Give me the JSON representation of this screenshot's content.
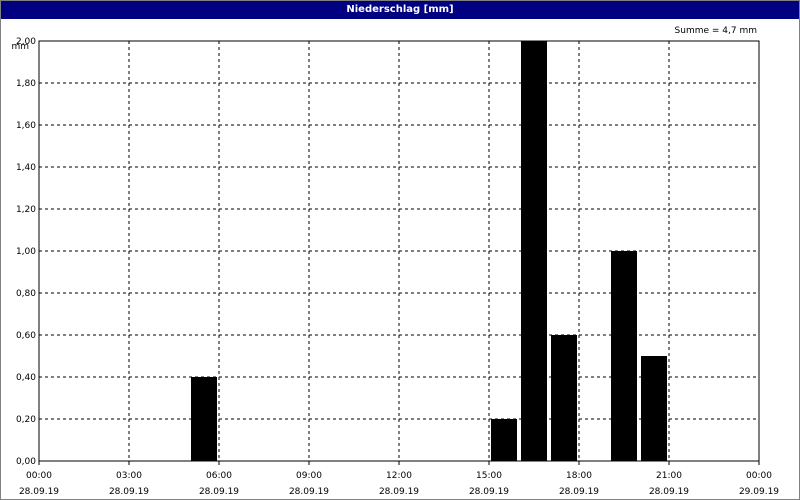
{
  "window": {
    "title": "Niederschlag [mm]"
  },
  "summary": "Summe = 4,7 mm",
  "colors": {
    "titlebar": "#000080",
    "bars": "#000000",
    "grid": "#000000"
  },
  "chart_data": {
    "type": "bar",
    "title": "Niederschlag [mm]",
    "ylabel": "mm",
    "xlabel": "",
    "ylim": [
      0,
      2.0
    ],
    "y_ticks": [
      "0,00",
      "0,20",
      "0,40",
      "0,60",
      "0,80",
      "1,00",
      "1,20",
      "1,40",
      "1,60",
      "1,80",
      "2,00"
    ],
    "x_ticks": [
      {
        "time": "00:00",
        "date": "28.09.19"
      },
      {
        "time": "03:00",
        "date": "28.09.19"
      },
      {
        "time": "06:00",
        "date": "28.09.19"
      },
      {
        "time": "09:00",
        "date": "28.09.19"
      },
      {
        "time": "12:00",
        "date": "28.09.19"
      },
      {
        "time": "15:00",
        "date": "28.09.19"
      },
      {
        "time": "18:00",
        "date": "28.09.19"
      },
      {
        "time": "21:00",
        "date": "28.09.19"
      },
      {
        "time": "00:00",
        "date": "29.09.19"
      }
    ],
    "bars": [
      {
        "start": "28.09.19 05:00",
        "end": "28.09.19 06:00",
        "value": 0.4
      },
      {
        "start": "28.09.19 15:00",
        "end": "28.09.19 16:00",
        "value": 0.2
      },
      {
        "start": "28.09.19 16:00",
        "end": "28.09.19 17:00",
        "value": 2.0
      },
      {
        "start": "28.09.19 17:00",
        "end": "28.09.19 18:00",
        "value": 0.6
      },
      {
        "start": "28.09.19 19:00",
        "end": "28.09.19 20:00",
        "value": 1.0
      },
      {
        "start": "28.09.19 20:00",
        "end": "28.09.19 21:00",
        "value": 0.5
      }
    ],
    "grid": true,
    "total": "Summe = 4,7 mm"
  }
}
